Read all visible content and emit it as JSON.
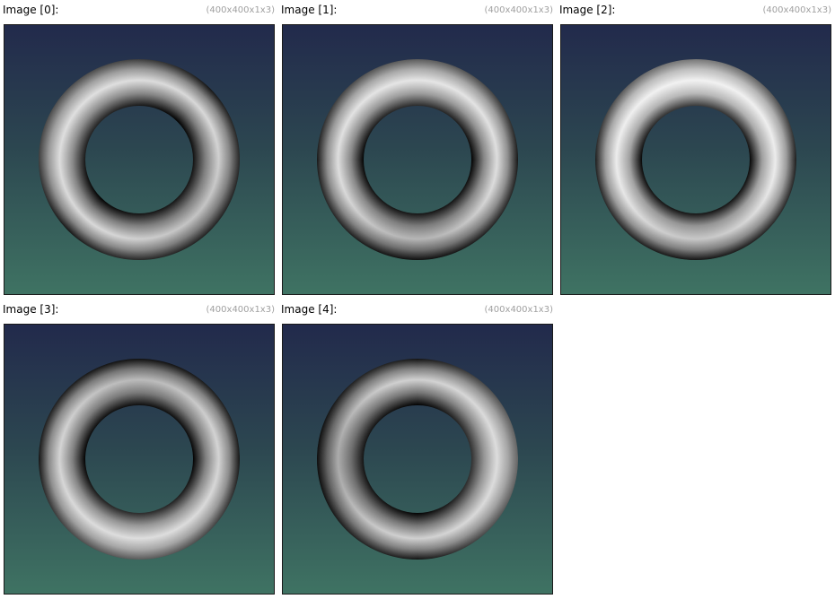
{
  "colors": {
    "background_top": "#222a4c",
    "background_bottom": "#3f7363",
    "border": "#1a1a1a",
    "dims_text": "#a0a0a0"
  },
  "images": [
    {
      "title": "Image [0]:",
      "dims": "(400x400x1x3)",
      "content": "torus",
      "highlight": "upper-left"
    },
    {
      "title": "Image [1]:",
      "dims": "(400x400x1x3)",
      "content": "torus",
      "highlight": "top"
    },
    {
      "title": "Image [2]:",
      "dims": "(400x400x1x3)",
      "content": "torus",
      "highlight": "top-bright"
    },
    {
      "title": "Image [3]:",
      "dims": "(400x400x1x3)",
      "content": "torus",
      "highlight": "bottom"
    },
    {
      "title": "Image [4]:",
      "dims": "(400x400x1x3)",
      "content": "torus",
      "highlight": "right"
    }
  ]
}
